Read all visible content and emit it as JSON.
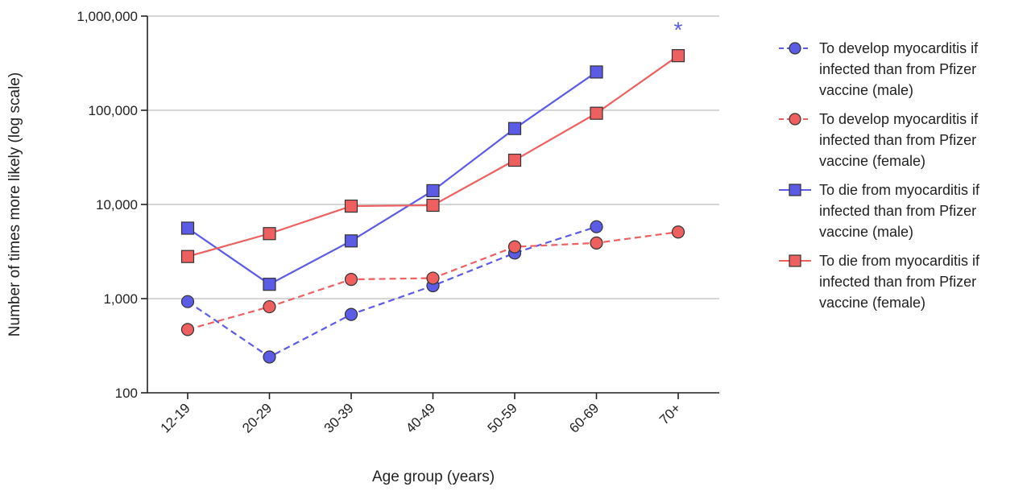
{
  "chart_data": {
    "type": "line",
    "xlabel": "Age group (years)",
    "ylabel": "Number of times more likely (log scale)",
    "yscale": "log",
    "ylim": [
      100,
      1000000
    ],
    "grid": true,
    "categories": [
      "12-19",
      "20-29",
      "30-39",
      "40-49",
      "50-59",
      "60-69",
      "70+"
    ],
    "yticks": [
      {
        "value": 100,
        "label": "100"
      },
      {
        "value": 1000,
        "label": "1,000"
      },
      {
        "value": 10000,
        "label": "10,000"
      },
      {
        "value": 100000,
        "label": "100,000"
      },
      {
        "value": 1000000,
        "label": "1,000,000"
      }
    ],
    "legend_position": "right",
    "series": [
      {
        "name": "To develop myocarditis if infected than from Pfizer vaccine (male)",
        "legend_lines": [
          "To develop myocarditis if",
          "infected than from Pfizer",
          "vaccine (male)"
        ],
        "color": "#5b5be6",
        "marker": "circle",
        "dashed": true,
        "values": [
          930,
          240,
          680,
          1370,
          3050,
          5800,
          null
        ]
      },
      {
        "name": "To develop myocarditis if infected than from Pfizer vaccine (female)",
        "legend_lines": [
          "To develop myocarditis if",
          "infected than from Pfizer",
          "vaccine (female)"
        ],
        "color": "#ee5f5f",
        "marker": "circle",
        "dashed": true,
        "values": [
          470,
          820,
          1600,
          1650,
          3550,
          3900,
          5100
        ]
      },
      {
        "name": "To die from myocarditis if infected than from Pfizer vaccine (male)",
        "legend_lines": [
          "To die from myocarditis if",
          "infected than from Pfizer",
          "vaccine (male)"
        ],
        "color": "#5b5be6",
        "marker": "square",
        "dashed": false,
        "values": [
          5600,
          1420,
          4100,
          14000,
          64000,
          255000,
          null
        ]
      },
      {
        "name": "To die from myocarditis if infected than from Pfizer vaccine (female)",
        "legend_lines": [
          "To die from myocarditis if",
          "infected than from Pfizer",
          "vaccine (female)"
        ],
        "color": "#ee5f5f",
        "marker": "square",
        "dashed": false,
        "values": [
          2800,
          4900,
          9600,
          9800,
          29500,
          93000,
          380000
        ]
      }
    ],
    "annotations": [
      {
        "text": "*",
        "category": "70+",
        "value": 780000,
        "color": "#5b5be6"
      }
    ]
  }
}
